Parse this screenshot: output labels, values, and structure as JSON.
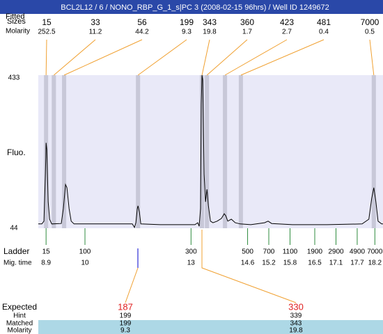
{
  "title": "BCL2L12 / 6 / NONO_RBP_G_1_s|PC 3 (2008-02-15 96hrs) / Well ID 1249672",
  "top_labels": {
    "fitted": "Fitted",
    "sizes": "Sizes",
    "molarity": "Molarity"
  },
  "chart_data": {
    "type": "line",
    "y_label": "Fluo.",
    "color": "#000000",
    "xlim": [
      8.68,
      18.43
    ],
    "ylim": [
      44,
      433
    ],
    "yticks": [
      44,
      433
    ],
    "x": [
      8.68,
      8.78,
      8.84,
      8.88,
      8.9,
      8.92,
      8.96,
      9.0,
      9.06,
      9.33,
      9.39,
      9.45,
      9.49,
      9.55,
      9.61,
      9.69,
      11.34,
      11.4,
      11.44,
      11.48,
      11.5,
      11.54,
      11.58,
      12.13,
      13.11,
      13.19,
      13.23,
      13.27,
      13.29,
      13.31,
      13.33,
      13.37,
      13.41,
      13.45,
      13.49,
      13.55,
      13.62,
      13.74,
      13.86,
      13.94,
      13.98,
      14.04,
      14.14,
      14.25,
      14.39,
      14.69,
      15.08,
      15.18,
      15.28,
      15.87,
      16.85,
      17.84,
      18.03,
      18.11,
      18.17,
      18.23,
      18.29,
      18.39,
      18.43
    ],
    "values": [
      55,
      55,
      62,
      182,
      261,
      244,
      111,
      67,
      55,
      56,
      94,
      155,
      147,
      94,
      62,
      55,
      55,
      46,
      58,
      94,
      101,
      85,
      55,
      53,
      53,
      58,
      49,
      94,
      359,
      433,
      421,
      182,
      111,
      143,
      102,
      62,
      58,
      62,
      69,
      81,
      76,
      62,
      67,
      58,
      55,
      53,
      58,
      62,
      56,
      53,
      53,
      55,
      67,
      120,
      147,
      111,
      62,
      55,
      55
    ],
    "peaks": [
      {
        "size": 15,
        "molarity": 252.5,
        "time": 8.9
      },
      {
        "size": 33,
        "molarity": 11.2,
        "time": 9.12
      },
      {
        "size": 56,
        "molarity": 44.2,
        "time": 9.41
      },
      {
        "size": 199,
        "molarity": 9.3,
        "time": 11.5
      },
      {
        "size": 343,
        "molarity": 19.8,
        "time": 13.31
      },
      {
        "size": 360,
        "molarity": 1.7,
        "time": 13.45
      },
      {
        "size": 423,
        "molarity": 2.7,
        "time": 13.96
      },
      {
        "size": 481,
        "molarity": 0.4,
        "time": 14.41
      },
      {
        "size": 7000,
        "molarity": 0.5,
        "time": 18.17
      }
    ],
    "ladder_label": "Ladder",
    "mig_time_label": "Mig. time",
    "ladder": [
      {
        "size": 15,
        "time": 8.9
      },
      {
        "size": 100,
        "time": 10
      },
      {
        "size": 300,
        "time": 13
      },
      {
        "size": 500,
        "time": 14.6
      },
      {
        "size": 700,
        "time": 15.2
      },
      {
        "size": 1100,
        "time": 15.8
      },
      {
        "size": 1900,
        "time": 16.5
      },
      {
        "size": 2900,
        "time": 17.1
      },
      {
        "size": 4900,
        "time": 17.7
      },
      {
        "size": 7000,
        "time": 18.2
      }
    ]
  },
  "results": {
    "labels": {
      "expected": "Expected",
      "hint": "Hint",
      "matched": "Matched",
      "molarity": "Molarity"
    },
    "columns": [
      {
        "expected": 187,
        "hint": 199,
        "matched": 199,
        "molarity": 9.3
      },
      {
        "expected": 330,
        "hint": 339,
        "matched": 343,
        "molarity": 19.8
      }
    ]
  }
}
